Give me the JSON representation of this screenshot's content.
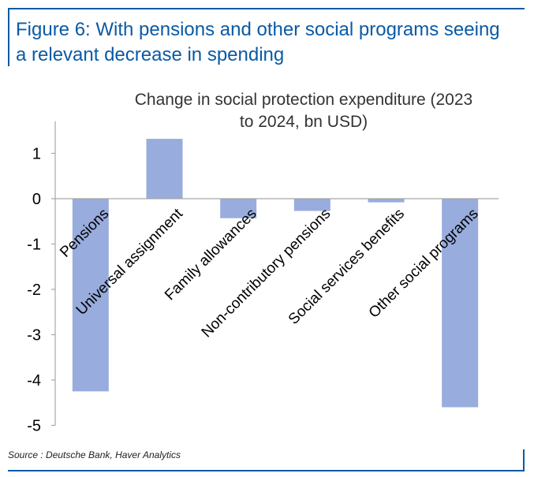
{
  "figure": {
    "title_line1": "Figure 6: With pensions and other social programs seeing",
    "title_line2": "a relevant decrease in spending"
  },
  "source": "Source : Deutsche Bank, Haver Analytics",
  "chart_data": {
    "type": "bar",
    "title": "Change in social protection expenditure (2023 to 2024, bn USD)",
    "title_lines": [
      "Change in social protection expenditure (2023",
      "to 2024, bn USD)"
    ],
    "categories": [
      "Pensions",
      "Universal assignment",
      "Family allowances",
      "Non-contributory pensions",
      "Social services benefits",
      "Other social programs"
    ],
    "values": [
      -4.25,
      1.32,
      -0.43,
      -0.27,
      -0.08,
      -4.6
    ],
    "ylim": [
      -5,
      1.5
    ],
    "yticks": [
      1,
      0,
      -1,
      -2,
      -3,
      -4,
      -5
    ],
    "xlabel": "",
    "ylabel": "",
    "grid": false,
    "bar_color": "#98acdd"
  }
}
